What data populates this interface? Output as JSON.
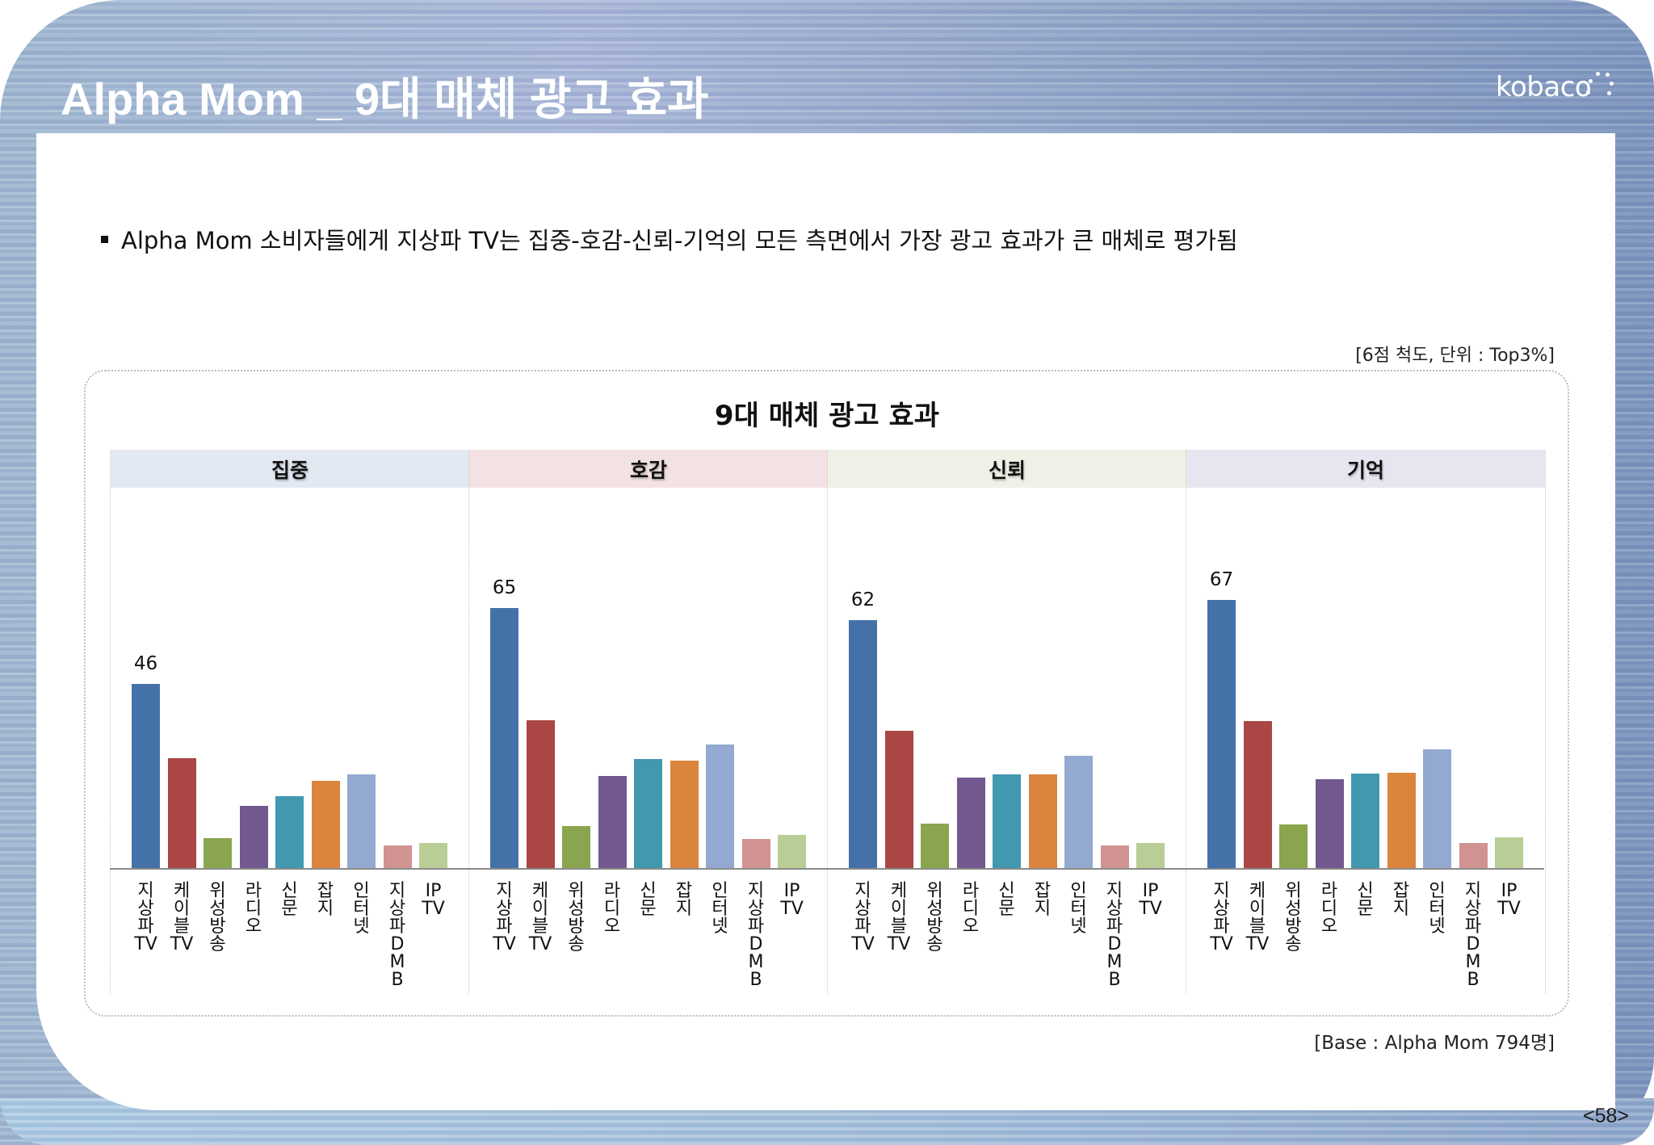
{
  "header": {
    "title": "Alpha Mom _ 9대 매체 광고 효과",
    "logo_text": "kobaco"
  },
  "summary": {
    "bullet": "Alpha Mom 소비자들에게 지상파 TV는 집중-호감-신뢰-기억의 모든 측면에서 가장 광고 효과가 큰 매체로 평가됨"
  },
  "notes": {
    "unit": "[6점 척도, 단위 : Top3%]",
    "base": "[Base : Alpha Mom 794명]"
  },
  "page_number": "<58>",
  "colors": {
    "media": [
      "#4472a8",
      "#aa4643",
      "#89a54e",
      "#71588f",
      "#4198af",
      "#db843d",
      "#93a9cf",
      "#d19392",
      "#b9cd96"
    ],
    "panel_headers": [
      "#e3e9f3",
      "#f3e2e3",
      "#eef2e6",
      "#e7e5ef"
    ]
  },
  "chart_data": {
    "type": "bar",
    "title": "9대 매체 광고 효과",
    "xlabel": "",
    "ylabel": "Top3%",
    "ylim": [
      0,
      75
    ],
    "grid": false,
    "legend": "none",
    "categories": [
      "지상파TV",
      "케이블TV",
      "위성방송",
      "라디오",
      "신문",
      "잡지",
      "인터넷",
      "지상파DMB",
      "IPTV"
    ],
    "panels": [
      {
        "name": "집중",
        "values": [
          46,
          27.5,
          7.7,
          15.6,
          18.2,
          21.9,
          23.5,
          5.9,
          6.5
        ],
        "labeled_value": "46"
      },
      {
        "name": "호감",
        "values": [
          65,
          37.0,
          10.7,
          23.1,
          27.4,
          27.0,
          31.0,
          7.4,
          8.4
        ],
        "labeled_value": "65"
      },
      {
        "name": "신뢰",
        "values": [
          62,
          34.5,
          11.2,
          22.7,
          23.5,
          23.5,
          28.1,
          5.8,
          6.4
        ],
        "labeled_value": "62"
      },
      {
        "name": "기억",
        "values": [
          67,
          36.8,
          11.1,
          22.3,
          23.7,
          23.9,
          29.8,
          6.4,
          7.8
        ],
        "labeled_value": "67"
      }
    ]
  }
}
